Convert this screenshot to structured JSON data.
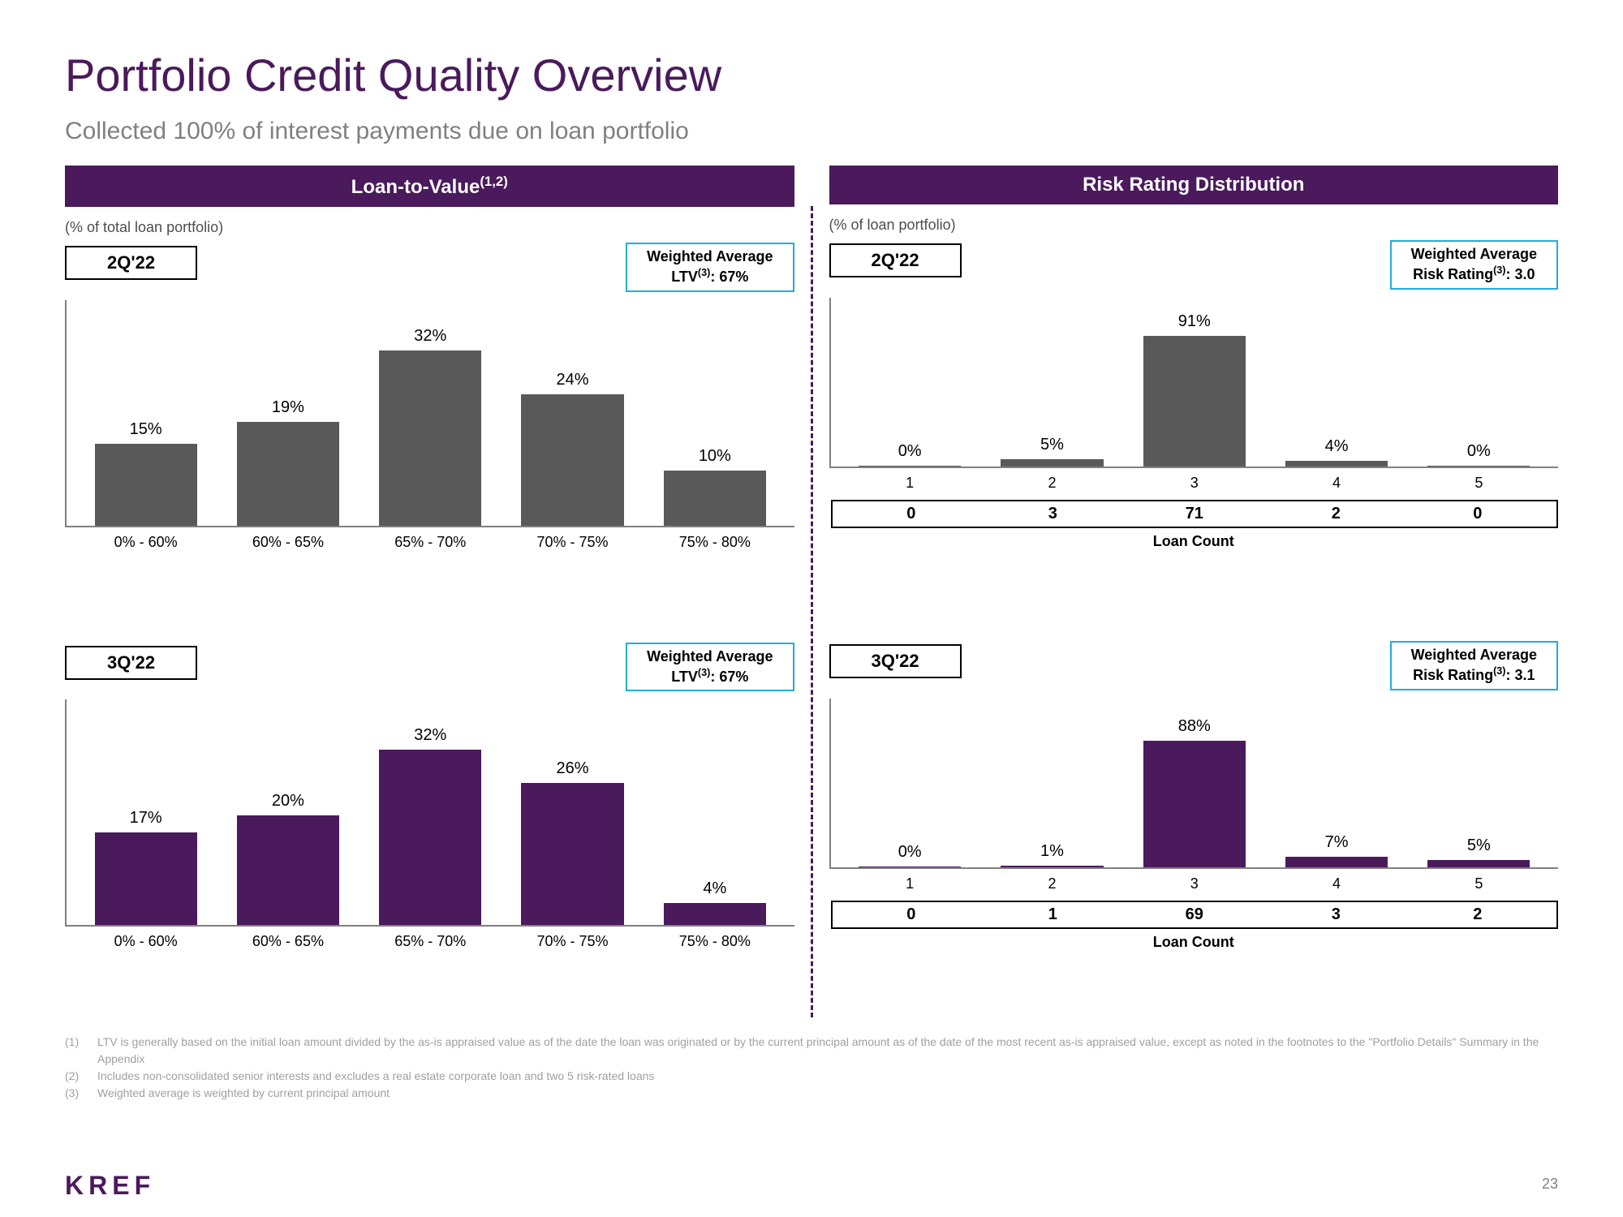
{
  "title": "Portfolio Credit Quality Overview",
  "subtitle": "Collected 100% of interest payments due on loan portfolio",
  "logo": "KREF",
  "page_number": "23",
  "colors": {
    "brand": "#4a1a5c",
    "gray_bar": "#595959",
    "purple_bar": "#4a1a5c",
    "cyan_border": "#1faedb",
    "axis": "#808080"
  },
  "left": {
    "header": "Loan-to-Value",
    "header_sup": "(1,2)",
    "portfolio_label": "(% of total loan portfolio)",
    "chart_max": 35,
    "xlabels": [
      "0% - 60%",
      "60% - 65%",
      "65% - 70%",
      "70% - 75%",
      "75% - 80%"
    ],
    "q2": {
      "quarter": "2Q'22",
      "wa_line1": "Weighted Average",
      "wa_line2_prefix": "LTV",
      "wa_line2_sup": "(3)",
      "wa_line2_value": ": 67%",
      "values": [
        15,
        19,
        32,
        24,
        10
      ],
      "bar_color": "#595959"
    },
    "q3": {
      "quarter": "3Q'22",
      "wa_line1": "Weighted Average",
      "wa_line2_prefix": "LTV",
      "wa_line2_sup": "(3)",
      "wa_line2_value": ": 67%",
      "values": [
        17,
        20,
        32,
        26,
        4
      ],
      "bar_color": "#4a1a5c"
    }
  },
  "right": {
    "header": "Risk Rating Distribution",
    "header_sup": "",
    "portfolio_label": "(% of loan portfolio)",
    "chart_max": 100,
    "xlabels": [
      "1",
      "2",
      "3",
      "4",
      "5"
    ],
    "loancount_label": "Loan Count",
    "q2": {
      "quarter": "2Q'22",
      "wa_line1": "Weighted Average",
      "wa_line2_prefix": "Risk Rating",
      "wa_line2_sup": "(3)",
      "wa_line2_value": ": 3.0",
      "values": [
        0,
        5,
        91,
        4,
        0
      ],
      "bar_color": "#595959",
      "loan_counts": [
        "0",
        "3",
        "71",
        "2",
        "0"
      ]
    },
    "q3": {
      "quarter": "3Q'22",
      "wa_line1": "Weighted Average",
      "wa_line2_prefix": "Risk Rating",
      "wa_line2_sup": "(3)",
      "wa_line2_value": ": 3.1",
      "values": [
        0,
        1,
        88,
        7,
        5
      ],
      "bar_color": "#4a1a5c",
      "loan_counts": [
        "0",
        "1",
        "69",
        "3",
        "2"
      ]
    }
  },
  "footnotes": [
    {
      "num": "(1)",
      "text": "LTV is generally based on the initial loan amount divided by the as-is appraised value as of the date the loan was originated or by the current principal amount as of the date of the most recent as-is appraised value, except as noted in the footnotes to the \"Portfolio Details\" Summary in the Appendix"
    },
    {
      "num": "(2)",
      "text": "Includes non-consolidated senior interests and excludes a real estate corporate loan and two 5 risk-rated loans"
    },
    {
      "num": "(3)",
      "text": "Weighted average is weighted by current principal amount"
    }
  ]
}
